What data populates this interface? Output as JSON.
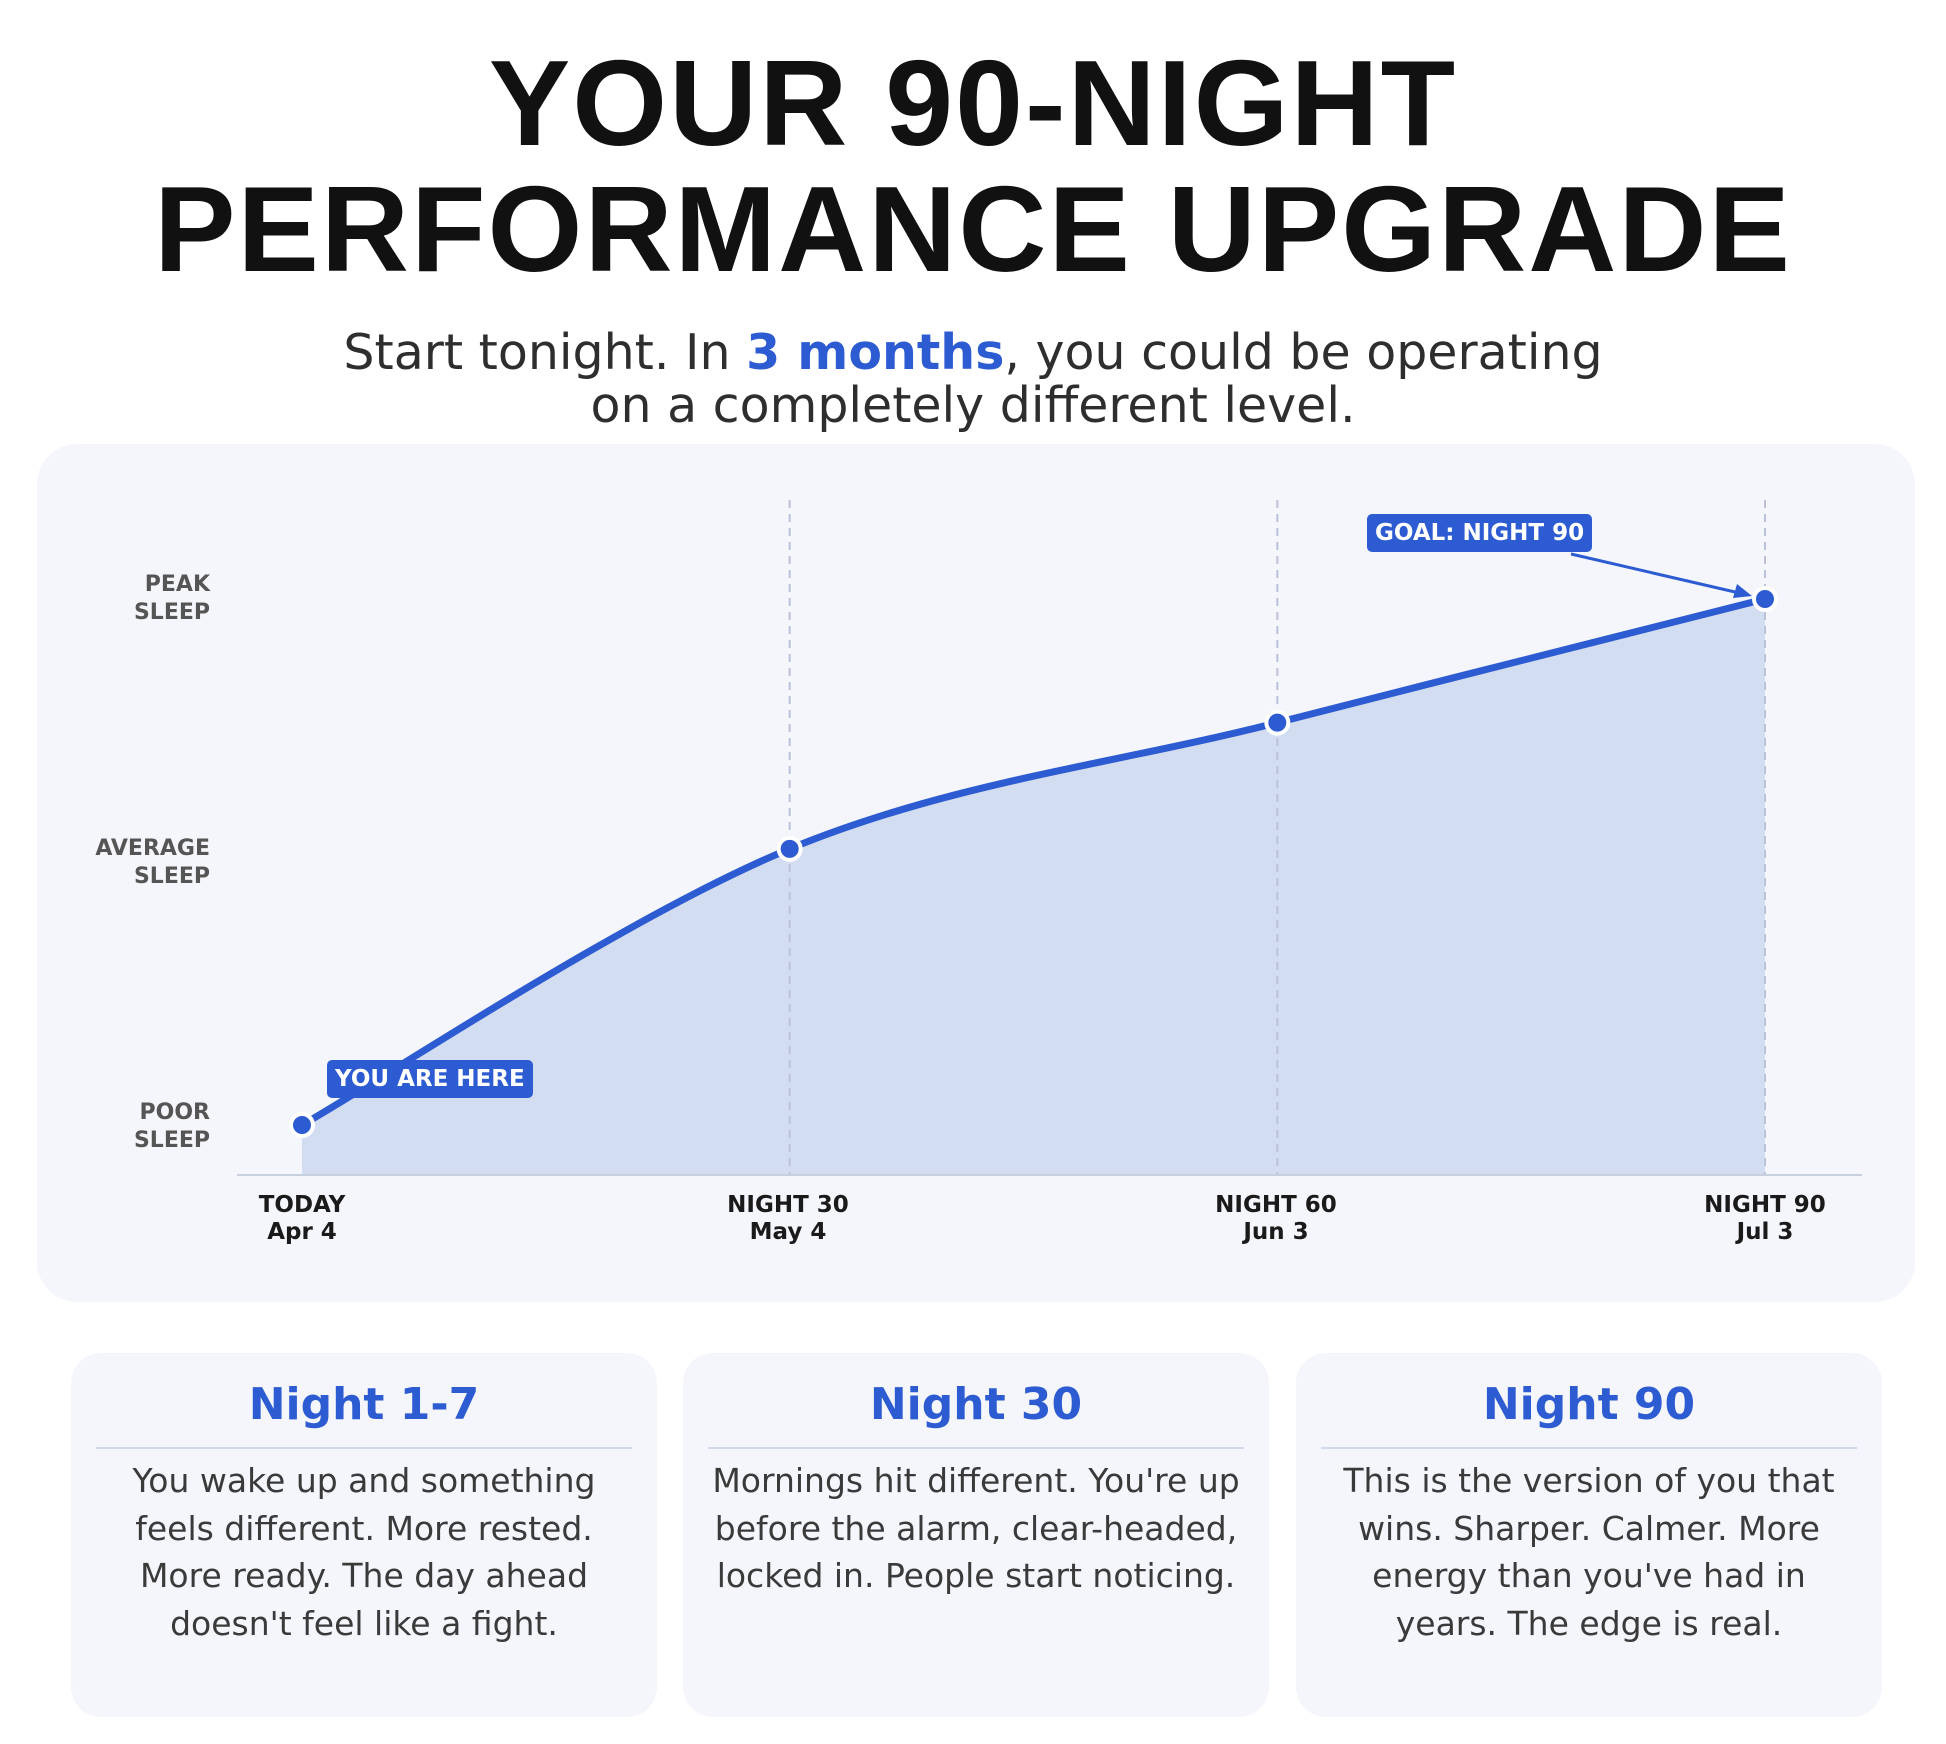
{
  "header": {
    "title_line1": "YOUR 90-NIGHT",
    "title_line2": "PERFORMANCE UPGRADE",
    "subtitle_pre": "Start tonight. In ",
    "subtitle_highlight": "3 months",
    "subtitle_post": ", you could be operating on a completely different level."
  },
  "chart_data": {
    "type": "area",
    "x": [
      0,
      30,
      60,
      90
    ],
    "x_tick_labels": [
      {
        "top": "TODAY",
        "bottom": "Apr 4"
      },
      {
        "top": "NIGHT 30",
        "bottom": "May 4"
      },
      {
        "top": "NIGHT 60",
        "bottom": "Jun 3"
      },
      {
        "top": "NIGHT 90",
        "bottom": "Jul 3"
      }
    ],
    "y_ticks": [
      {
        "value": 0,
        "line1": "POOR",
        "line2": "SLEEP"
      },
      {
        "value": 1,
        "line1": "AVERAGE",
        "line2": "SLEEP"
      },
      {
        "value": 2,
        "line1": "PEAK",
        "line2": "SLEEP"
      }
    ],
    "y": [
      0,
      1.05,
      1.53,
      2.0
    ],
    "ylim": [
      0,
      2
    ],
    "xlim": [
      0,
      90
    ],
    "grid": "vertical dashed at markers",
    "annotations": [
      {
        "text": "YOU ARE HERE",
        "x": 0
      },
      {
        "text": "GOAL: NIGHT 90",
        "x": 90
      }
    ],
    "colors": {
      "line": "#2d5bd2",
      "fill": "#d3ddf2",
      "background": "#f4f6fb"
    }
  },
  "cards": [
    {
      "title": "Night 1-7",
      "body": "You wake up and something feels different. More rested. More ready. The day ahead doesn't feel like a fight."
    },
    {
      "title": "Night 30",
      "body": "Mornings hit different. You're up before the alarm, clear-headed, locked in. People start noticing."
    },
    {
      "title": "Night 90",
      "body": "This is the version of you that wins. Sharper. Calmer. More energy than you've had in years. The edge is real."
    }
  ]
}
